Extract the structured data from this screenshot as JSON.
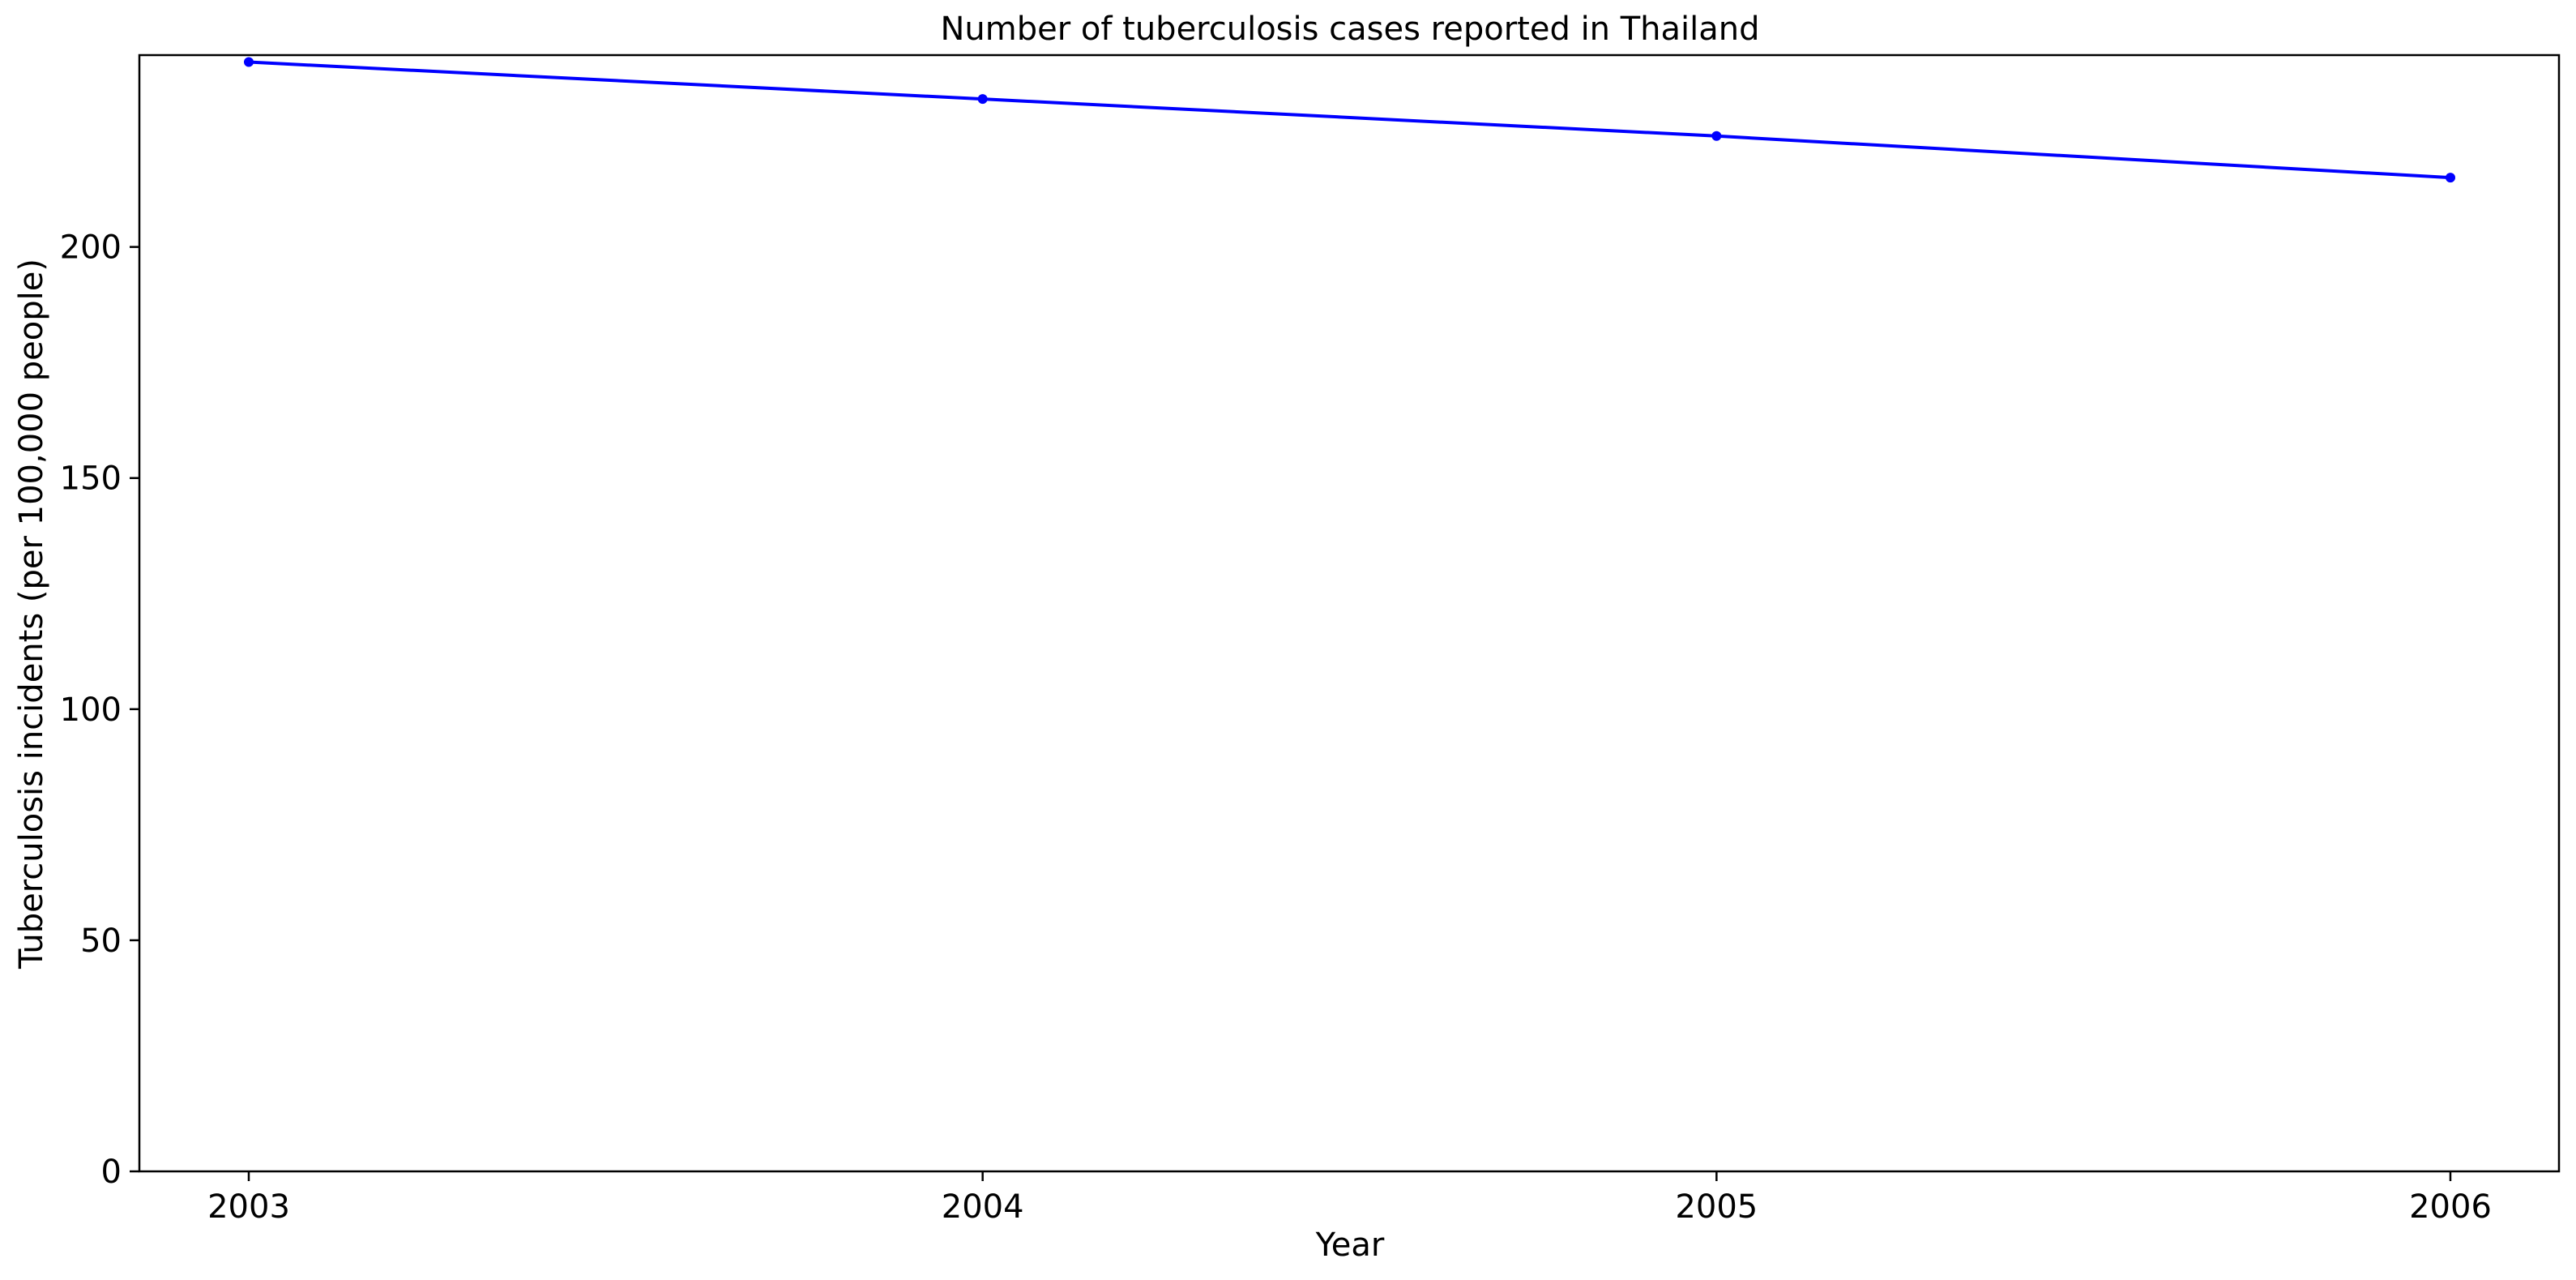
{
  "chart_data": {
    "type": "line",
    "title": "Number of tuberculosis cases reported in Thailand",
    "xlabel": "Year",
    "ylabel": "Tuberculosis incidents (per 100,000 people)",
    "x": [
      "2003",
      "2004",
      "2005",
      "2006"
    ],
    "series": [
      {
        "values": [
          240,
          232,
          224,
          215
        ],
        "color": "#0000ff",
        "marker": "dot"
      }
    ],
    "yticks": [
      "0",
      "50",
      "100",
      "150",
      "200"
    ],
    "ylim": [
      0,
      241.5
    ],
    "grid": false,
    "legend": "none"
  }
}
